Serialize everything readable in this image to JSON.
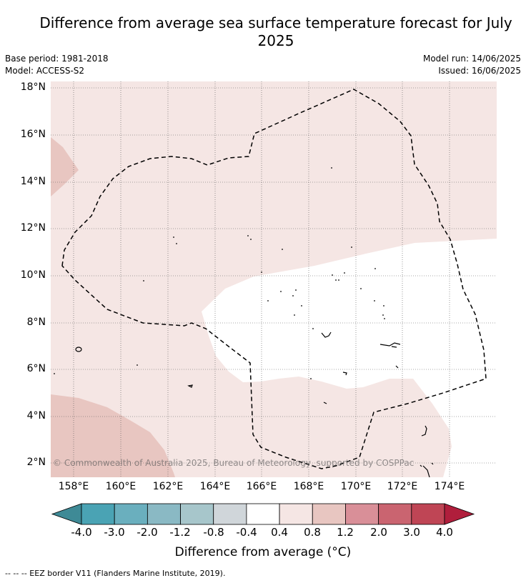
{
  "title": "Difference from average sea surface temperature forecast for July 2025",
  "info": {
    "base_period": "Base period: 1981-2018",
    "model": "Model: ACCESS-S2",
    "model_run": "Model run: 14/06/2025",
    "issued": "Issued: 16/06/2025"
  },
  "map": {
    "lat_labels": [
      "18°N",
      "16°N",
      "14°N",
      "12°N",
      "10°N",
      "8°N",
      "6°N",
      "4°N",
      "2°N"
    ],
    "lon_labels": [
      "158°E",
      "160°E",
      "162°E",
      "164°E",
      "166°E",
      "168°E",
      "170°E",
      "172°E",
      "174°E"
    ],
    "copyright": "© Commonwealth of Australia 2025, Bureau of Meteorology, supported by COSPPac"
  },
  "colorbar": {
    "title": "Difference from average (°C)",
    "tick_labels": [
      "-4.0",
      "-3.0",
      "-2.0",
      "-1.2",
      "-0.8",
      "-0.4",
      "0.4",
      "0.8",
      "1.2",
      "2.0",
      "3.0",
      "4.0"
    ],
    "colors": [
      "#3e8a96",
      "#4aa3b4",
      "#6aafbe",
      "#8ab9c4",
      "#a7c6cb",
      "#d0d6da",
      "#ffffff",
      "#f5e6e4",
      "#e8c6c1",
      "#d98f98",
      "#ca6470",
      "#bf4555",
      "#b01e3c"
    ]
  },
  "footnote": "--  --  -- EEZ border V11 (Flanders Marine Institute, 2019)."
}
